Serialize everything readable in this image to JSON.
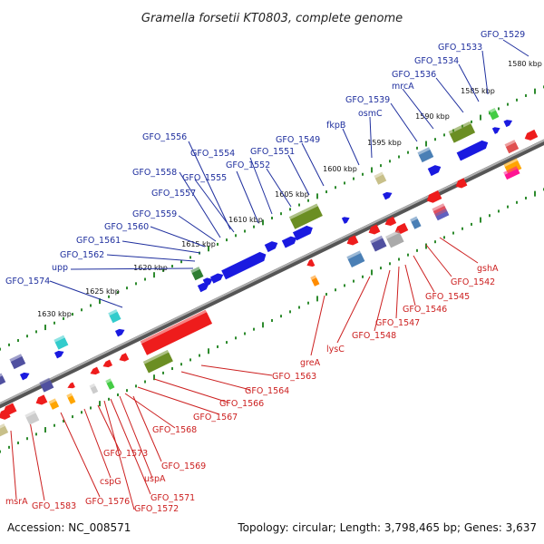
{
  "title": "Gramella forsetii KT0803, complete genome",
  "footer": {
    "accession": "Accession: NC_008571",
    "summary": "Topology: circular; Length: 3,798,465 bp; Genes: 3,637"
  },
  "colors": {
    "forward_label": "#1f2f9e",
    "reverse_label": "#cc1f1f",
    "backbone": "#808080",
    "tick": "#2e8b2e"
  },
  "ruler_labels": [
    "1580 kbp",
    "1585 kbp",
    "1590 kbp",
    "1595 kbp",
    "1600 kbp",
    "1605 kbp",
    "1610 kbp",
    "1615 kbp",
    "1620 kbp",
    "1625 kbp",
    "1630 kbp"
  ],
  "forward_genes": [
    "GFO_1529",
    "GFO_1533",
    "GFO_1534",
    "GFO_1536",
    "mrcA",
    "GFO_1539",
    "osmC",
    "fkpB",
    "GFO_1549",
    "GFO_1551",
    "GFO_1552",
    "GFO_1554",
    "GFO_1555",
    "GFO_1556",
    "GFO_1557",
    "GFO_1558",
    "GFO_1559",
    "GFO_1560",
    "GFO_1561",
    "GFO_1562",
    "upp",
    "GFO_1574"
  ],
  "reverse_genes": [
    "gshA",
    "GFO_1542",
    "GFO_1545",
    "GFO_1546",
    "GFO_1547",
    "GFO_1548",
    "lysC",
    "greA",
    "GFO_1563",
    "GFO_1564",
    "GFO_1566",
    "GFO_1567",
    "GFO_1568",
    "GFO_1569",
    "uspA",
    "GFO_1571",
    "GFO_1572",
    "GFO_1573",
    "cspG",
    "GFO_1576",
    "GFO_1583",
    "msrA"
  ]
}
